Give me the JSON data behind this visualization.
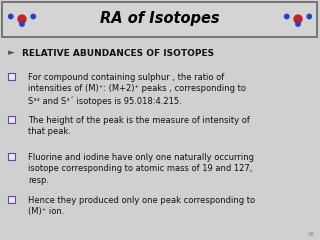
{
  "title": "RA of Isotopes",
  "title_color": "#000000",
  "title_bg": "#d4d4d4",
  "header_border_color": "#888888",
  "body_bg": "#d0d0d0",
  "green_line_color": "#88bb22",
  "slide_number": "58",
  "arrow_item": "RELATIVE ABUNDANCES OF ISOTOPES",
  "square_items": [
    "For compound containing sulphur , the ratio of\nintensities of (M)⁺: (M+2)⁺ peaks , corresponding to\nS³² and S³´ isotopes is 95.018:4.215.",
    "The height of the peak is the measure of intensity of\nthat peak.",
    "Fluorine and iodine have only one naturally occurring\nisotope corresponding to atomic mass of 19 and 127,\nresp.",
    "Hence they produced only one peak corresponding to\n(M)⁺ ion."
  ],
  "title_fontsize": 10.5,
  "body_fontsize": 6.0,
  "arrow_fontsize": 6.5,
  "figsize": [
    3.2,
    2.4
  ],
  "dpi": 100
}
